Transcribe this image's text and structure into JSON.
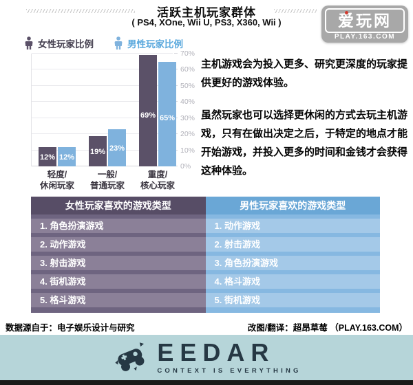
{
  "header": {
    "title": "活跃主机玩家群体",
    "subtitle": "( PS4, XOne, Wii U, PS3, X360, Wii )"
  },
  "site_logo": {
    "name": "爱玩网",
    "url": "PLAY.163.COM"
  },
  "legend": {
    "female": "女性玩家比例",
    "male": "男性玩家比例"
  },
  "chart_data": {
    "type": "bar",
    "title": "活跃主机玩家群体",
    "categories": [
      {
        "line1": "轻度/",
        "line2": "休闲玩家"
      },
      {
        "line1": "一般/",
        "line2": "普通玩家"
      },
      {
        "line1": "重度/",
        "line2": "核心玩家"
      }
    ],
    "series": [
      {
        "name": "女性玩家比例",
        "values": [
          12,
          19,
          69
        ],
        "labels": [
          "12%",
          "19%",
          "69%"
        ]
      },
      {
        "name": "男性玩家比例",
        "values": [
          12,
          23,
          65
        ],
        "labels": [
          "12%",
          "23%",
          "65%"
        ]
      }
    ],
    "ylim": [
      0,
      70
    ],
    "yticks": [
      "0%",
      "10%",
      "20%",
      "30%",
      "40%",
      "50%",
      "60%",
      "70%"
    ],
    "grid": true,
    "legend_position": "top-left",
    "yaxis_side": "right"
  },
  "article": {
    "para1": "主机游戏会为投入更多、研究更深度的玩家提供更好的游戏体验。",
    "para2": "虽然玩家也可以选择更休闲的方式去玩主机游戏，只有在做出决定之后，于特定的地点才能开始游戏，并投入更多的时间和金钱才会获得这种体验。"
  },
  "table": {
    "female": {
      "header": "女性玩家喜欢的游戏类型",
      "items": [
        "1. 角色扮演游戏",
        "2. 动作游戏",
        "3. 射击游戏",
        "4. 街机游戏",
        "5. 格斗游戏"
      ]
    },
    "male": {
      "header": "男性玩家喜欢的游戏类型",
      "items": [
        "1. 动作游戏",
        "2. 射击游戏",
        "3. 角色扮演游戏",
        "4. 格斗游戏",
        "5. 街机游戏"
      ]
    }
  },
  "credits": {
    "source": "数据源自于：电子娱乐设计与研究",
    "translator": "改图/翻译：超昂草莓 （PLAY.163.COM）"
  },
  "footer": {
    "brand": "EEDAR",
    "tagline": "CONTEXT IS EVERYTHING"
  },
  "colors": {
    "female": "#5b5168",
    "male": "#7fb2dd",
    "female_header": "#574d66",
    "female_row": "#8b8098",
    "female_sep": "#6e6480",
    "male_header": "#6aa7d6",
    "male_row": "#a4c9e8",
    "male_sep": "#86b8e1",
    "footer_band": "#b6d5d9",
    "brand_dark": "#263844",
    "logo_gray": "#a8a8a8"
  }
}
